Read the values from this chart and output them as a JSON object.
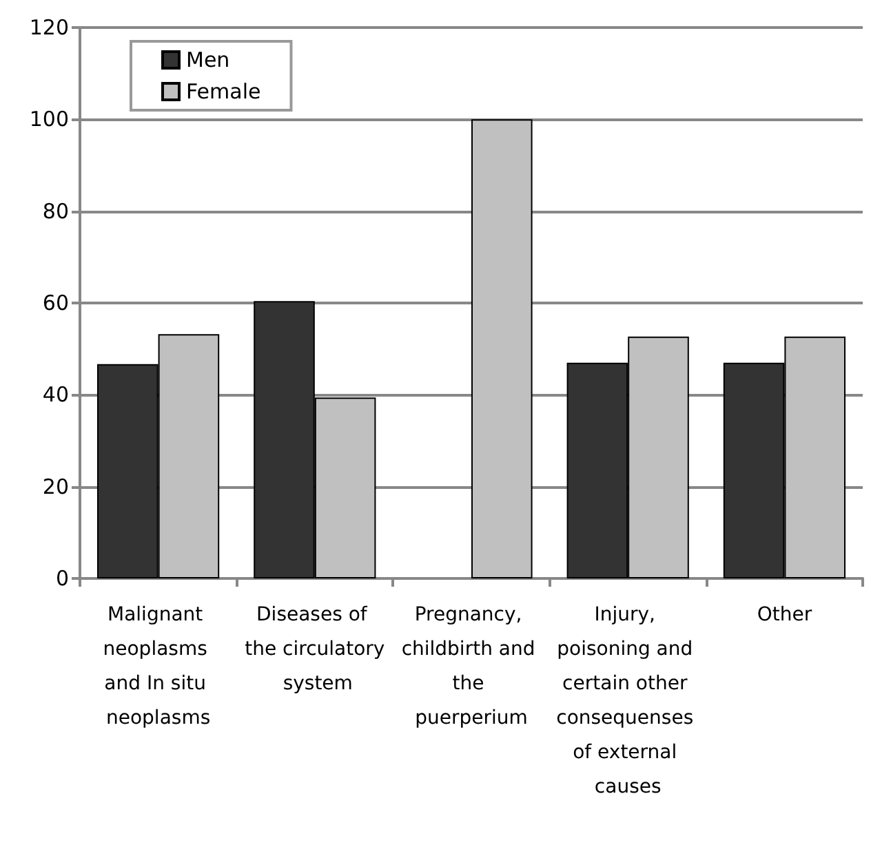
{
  "chart_data": {
    "type": "bar",
    "categories": [
      "Malignant neoplasms and In situ neoplasms",
      "Diseases of the circulatory system",
      "Pregnancy, childbirth and the puerperium",
      "Injury, poisoning and certain other consequenses of external causes",
      "Other"
    ],
    "series": [
      {
        "name": "Men",
        "color": "#333333",
        "values": [
          46.7,
          60.4,
          null,
          47.0,
          47.0
        ]
      },
      {
        "name": "Female",
        "color": "#c0c0c0",
        "values": [
          53.2,
          39.4,
          100,
          52.7,
          52.7
        ]
      }
    ],
    "ylim": [
      0,
      120
    ],
    "yticks": [
      0,
      20,
      40,
      60,
      80,
      100,
      120
    ],
    "grid": "y",
    "legend": "top left"
  }
}
